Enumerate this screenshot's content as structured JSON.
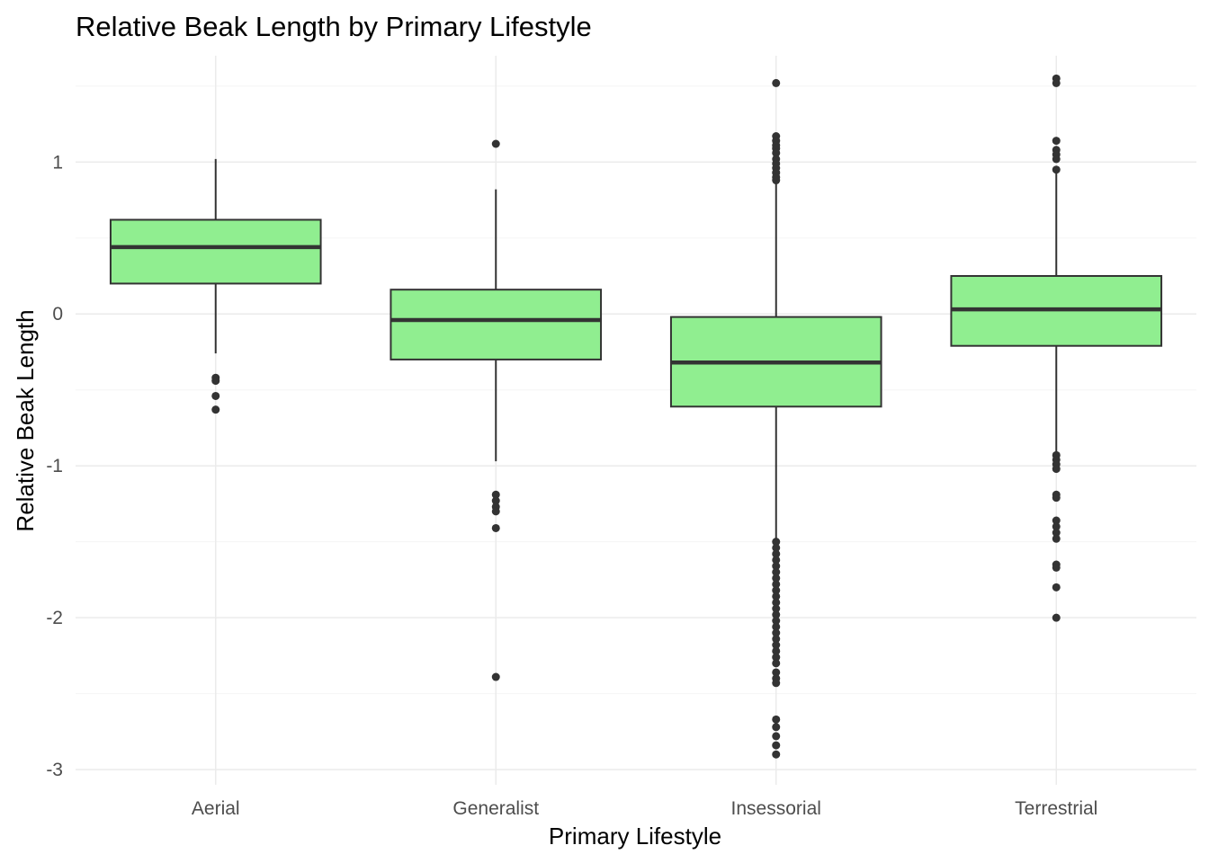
{
  "chart_data": {
    "type": "boxplot",
    "title": "Relative Beak Length by Primary Lifestyle",
    "xlabel": "Primary Lifestyle",
    "ylabel": "Relative Beak Length",
    "categories": [
      "Aerial",
      "Generalist",
      "Insessorial",
      "Terrestrial"
    ],
    "ylim": [
      -3.1,
      1.7
    ],
    "yticks": [
      -3,
      -2,
      -1,
      0,
      1
    ],
    "ytick_labels": [
      "-3",
      "-2",
      "-1",
      "0",
      "1"
    ],
    "grid": true,
    "legend": "none",
    "colors": {
      "box_fill": "#90EE90",
      "box_stroke": "#333333",
      "outlier": "#333333",
      "grid_major": "#EBEBEB",
      "grid_minor": "#F5F5F5"
    },
    "boxes": [
      {
        "category": "Aerial",
        "whisker_low": -0.26,
        "q1": 0.2,
        "median": 0.44,
        "q3": 0.62,
        "whisker_high": 1.02,
        "outliers": [
          -0.42,
          -0.44,
          -0.54,
          -0.63
        ]
      },
      {
        "category": "Generalist",
        "whisker_low": -0.97,
        "q1": -0.3,
        "median": -0.04,
        "q3": 0.16,
        "whisker_high": 0.82,
        "outliers": [
          1.12,
          -1.19,
          -1.23,
          -1.27,
          -1.3,
          -1.41,
          -2.39
        ]
      },
      {
        "category": "Insessorial",
        "whisker_low": -1.49,
        "q1": -0.61,
        "median": -0.32,
        "q3": -0.02,
        "whisker_high": 0.86,
        "outliers": [
          1.52,
          1.17,
          1.14,
          1.11,
          1.09,
          1.06,
          1.02,
          0.99,
          0.96,
          0.93,
          0.9,
          0.88,
          -1.5,
          -1.54,
          -1.58,
          -1.62,
          -1.66,
          -1.7,
          -1.74,
          -1.78,
          -1.82,
          -1.86,
          -1.9,
          -1.94,
          -1.98,
          -2.02,
          -2.06,
          -2.1,
          -2.14,
          -2.18,
          -2.22,
          -2.26,
          -2.3,
          -2.36,
          -2.4,
          -2.43,
          -2.67,
          -2.72,
          -2.78,
          -2.84,
          -2.9
        ]
      },
      {
        "category": "Terrestrial",
        "whisker_low": -0.92,
        "q1": -0.21,
        "median": 0.03,
        "q3": 0.25,
        "whisker_high": 0.93,
        "outliers": [
          1.55,
          1.52,
          1.14,
          1.08,
          1.05,
          1.02,
          0.95,
          -0.93,
          -0.96,
          -0.99,
          -1.02,
          -1.19,
          -1.21,
          -1.36,
          -1.4,
          -1.44,
          -1.48,
          -1.65,
          -1.67,
          -1.8,
          -2.0
        ]
      }
    ]
  }
}
